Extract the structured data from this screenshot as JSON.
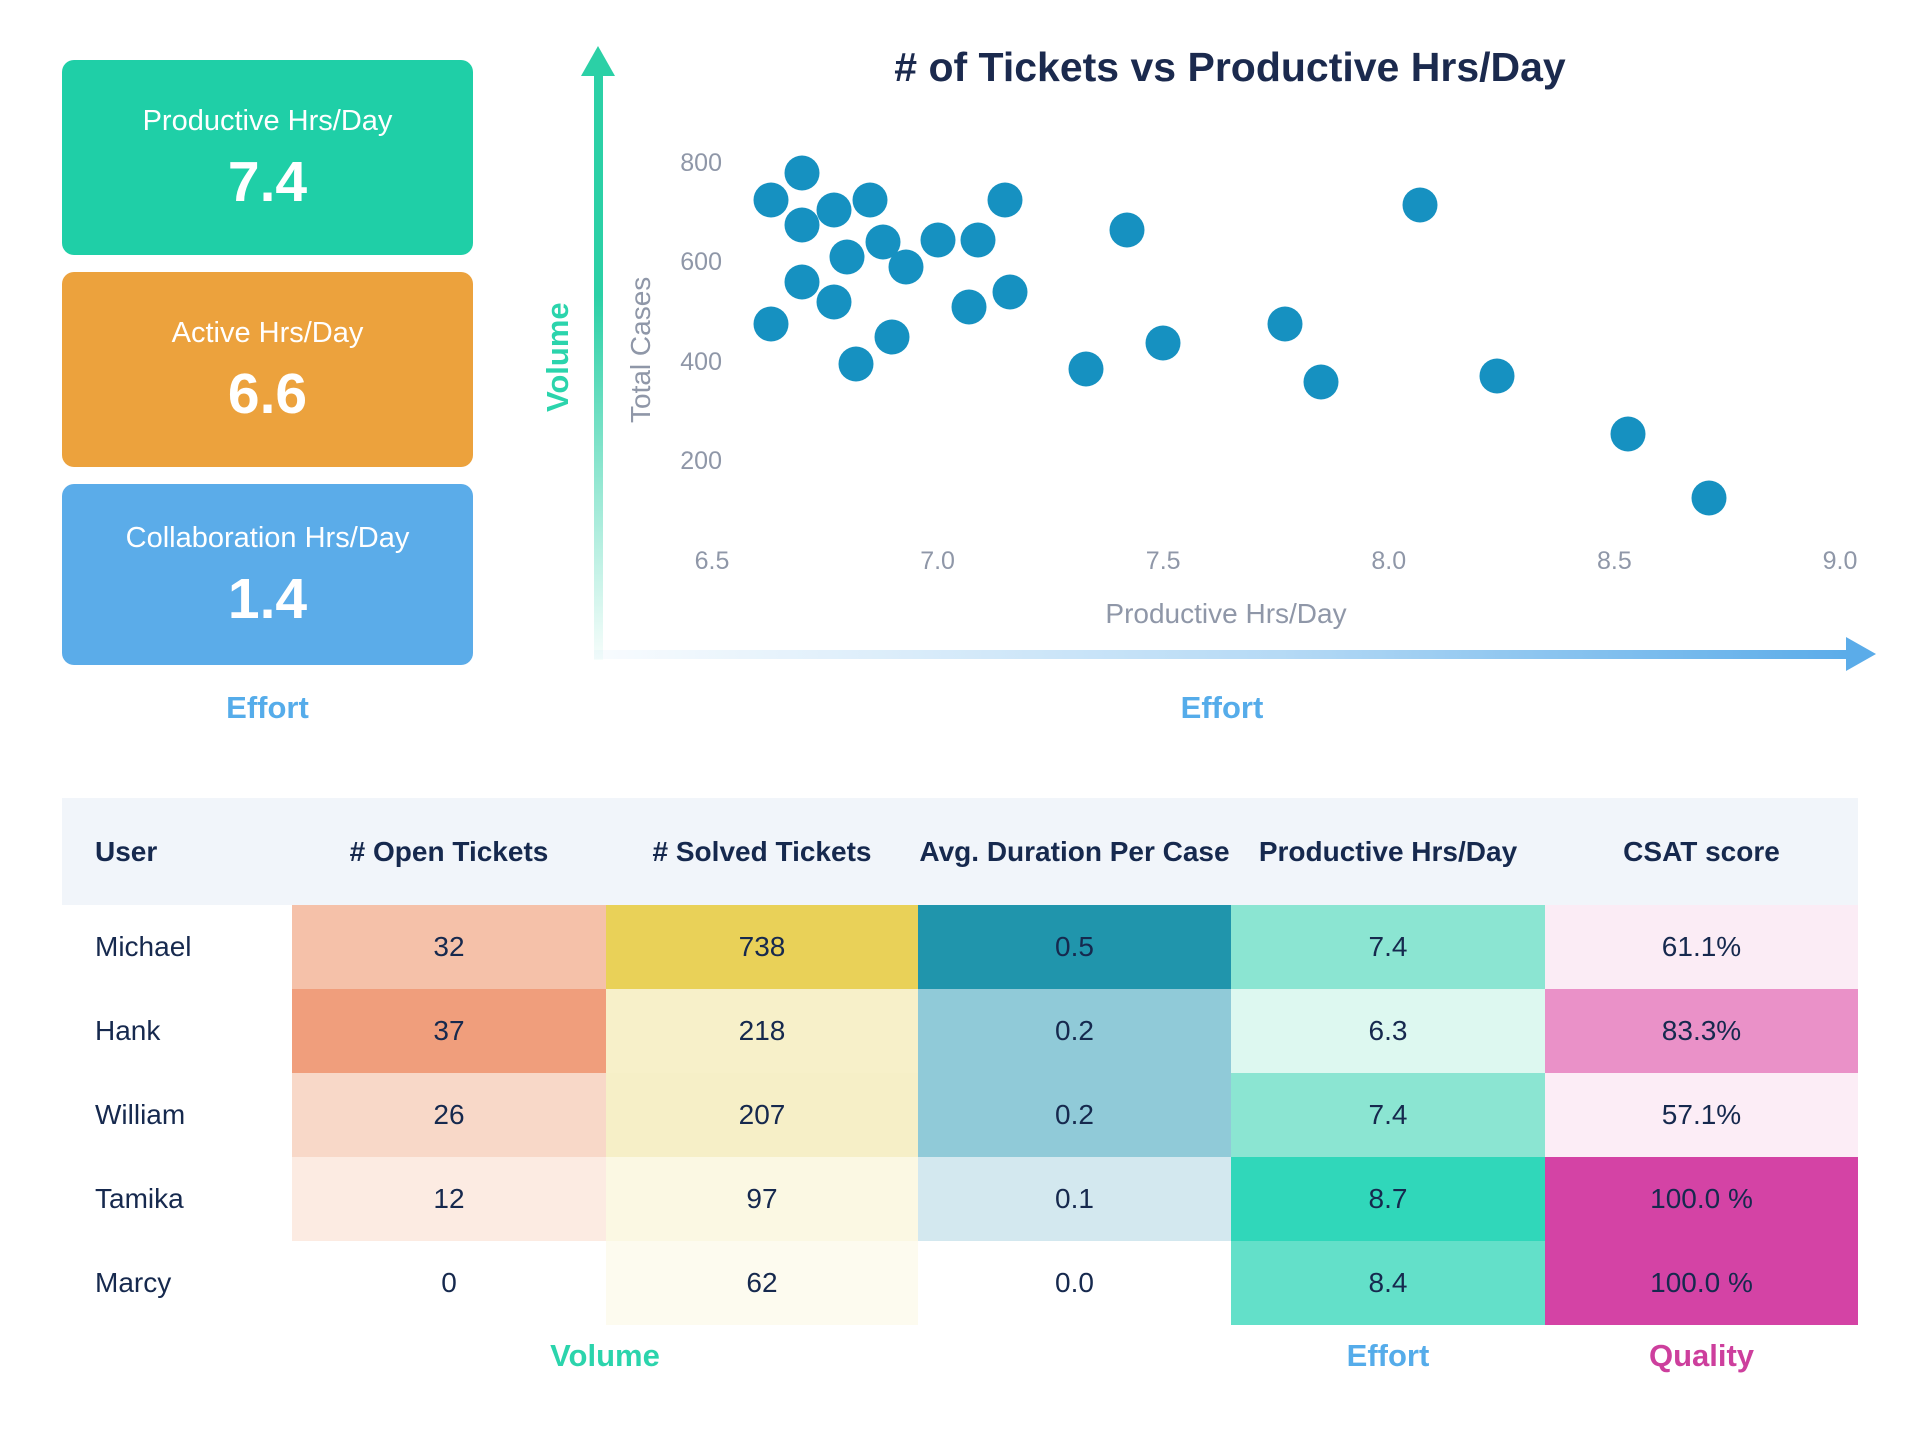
{
  "kpi_cards": [
    {
      "label": "Productive Hrs/Day",
      "value": "7.4",
      "color": "#1FCFA7"
    },
    {
      "label": "Active Hrs/Day",
      "value": "6.6",
      "color": "#ECA23D"
    },
    {
      "label": "Collaboration Hrs/Day",
      "value": "1.4",
      "color": "#5BACE9"
    }
  ],
  "kpi_group_label": {
    "text": "Effort",
    "color": "#55ACEA"
  },
  "chart_data": {
    "type": "scatter",
    "title": "# of Tickets vs Productive Hrs/Day",
    "title_color": "#1B2A4E",
    "xlabel": "Productive Hrs/Day",
    "ylabel": "Total Cases",
    "x_group_label": {
      "text": "Effort",
      "color": "#55ACEA"
    },
    "y_group_label": {
      "text": "Volume",
      "color": "#2BD4AC"
    },
    "xlim": [
      6.5,
      9.0
    ],
    "ylim": [
      0,
      900
    ],
    "xticks": [
      "6.5",
      "7.0",
      "7.5",
      "8.0",
      "8.5",
      "9.0"
    ],
    "yticks": [
      "800",
      "600",
      "400",
      "200"
    ],
    "grid": false,
    "legend": "none",
    "point_color": "#1691C1",
    "x_arrow_color": "#5BACE9",
    "y_arrow_color": "#2BD0A6",
    "points": [
      [
        6.63,
        725
      ],
      [
        6.7,
        780
      ],
      [
        6.7,
        675
      ],
      [
        6.77,
        705
      ],
      [
        6.85,
        725
      ],
      [
        6.8,
        610
      ],
      [
        6.88,
        640
      ],
      [
        6.93,
        590
      ],
      [
        7.0,
        645
      ],
      [
        7.09,
        645
      ],
      [
        7.15,
        725
      ],
      [
        6.7,
        560
      ],
      [
        6.77,
        520
      ],
      [
        6.63,
        475
      ],
      [
        6.9,
        450
      ],
      [
        6.82,
        395
      ],
      [
        7.07,
        510
      ],
      [
        7.16,
        540
      ],
      [
        7.33,
        385
      ],
      [
        7.42,
        665
      ],
      [
        7.5,
        438
      ],
      [
        7.77,
        475
      ],
      [
        7.85,
        360
      ],
      [
        8.07,
        715
      ],
      [
        8.24,
        372
      ],
      [
        8.53,
        255
      ],
      [
        8.71,
        125
      ]
    ]
  },
  "table": {
    "header_bg": "#F1F5FA",
    "text_color": "#16294E",
    "columns": [
      "User",
      "# Open Tickets",
      "# Solved Tickets",
      "Avg. Duration Per Case",
      "Productive Hrs/Day",
      "CSAT score"
    ],
    "rows": [
      {
        "user": "Michael",
        "open": "32",
        "solved": "738",
        "duration": "0.5",
        "productive": "7.4",
        "csat": "61.1%"
      },
      {
        "user": "Hank",
        "open": "37",
        "solved": "218",
        "duration": "0.2",
        "productive": "6.3",
        "csat": "83.3%"
      },
      {
        "user": "William",
        "open": "26",
        "solved": "207",
        "duration": "0.2",
        "productive": "7.4",
        "csat": "57.1%"
      },
      {
        "user": "Tamika",
        "open": "12",
        "solved": "97",
        "duration": "0.1",
        "productive": "8.7",
        "csat": "100.0 %"
      },
      {
        "user": "Marcy",
        "open": "0",
        "solved": "62",
        "duration": "0.0",
        "productive": "8.4",
        "csat": "100.0 %"
      }
    ],
    "cell_colors": {
      "user": [
        "#FFFFFF",
        "#FFFFFF",
        "#FFFFFF",
        "#FFFFFF",
        "#FFFFFF"
      ],
      "open": [
        "#F5C1A9",
        "#F09E7C",
        "#F8D8C8",
        "#FCEBE2",
        "#FFFFFF"
      ],
      "solved": [
        "#E9D158",
        "#F7F0C9",
        "#F6EFC7",
        "#FBF8E3",
        "#FDFBEF"
      ],
      "duration": [
        "#2095AC",
        "#90CAD8",
        "#90CAD8",
        "#D3E8EF",
        "#FFFFFF"
      ],
      "productive": [
        "#8BE5D2",
        "#DDF8F0",
        "#8BE5D2",
        "#30D7BA",
        "#63E0C9"
      ],
      "csat": [
        "#FBECF5",
        "#EA91C8",
        "#FCEDF6",
        "#D443A5",
        "#D443A5"
      ]
    }
  },
  "footer_labels": [
    {
      "text": "Volume",
      "color": "#2BD4AC"
    },
    {
      "text": "Effort",
      "color": "#55ACEA"
    },
    {
      "text": "Quality",
      "color": "#CD3F9D"
    }
  ]
}
